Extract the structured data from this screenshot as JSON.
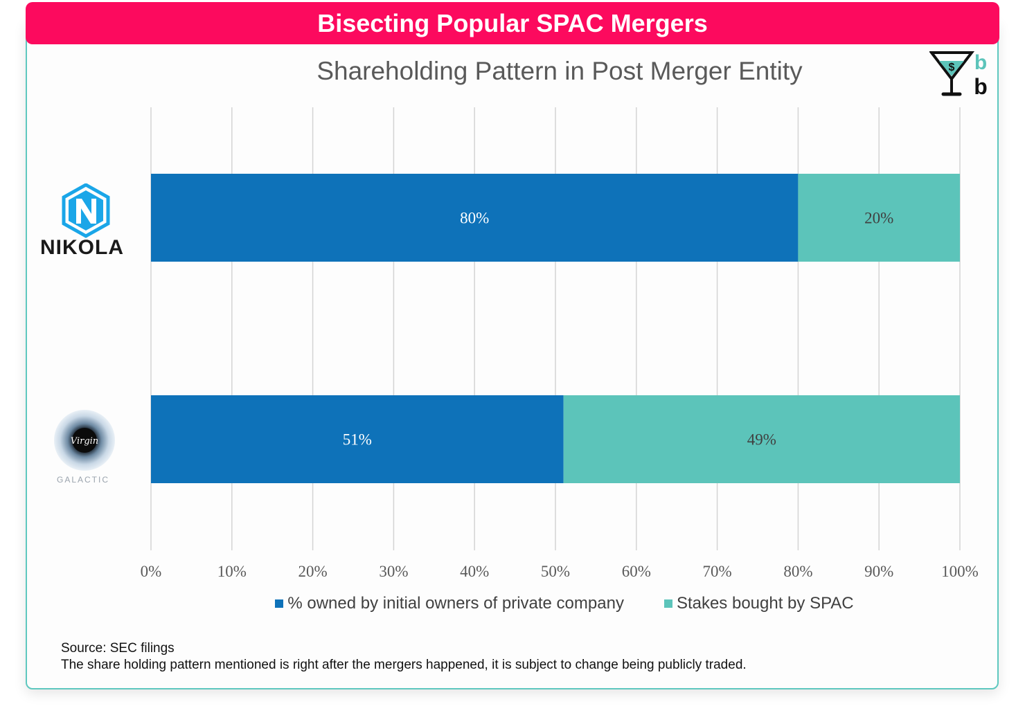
{
  "header": {
    "banner_title": "Bisecting Popular SPAC Mergers"
  },
  "logos": {
    "brand": {
      "icon": "martini-glass-dollar-icon",
      "letters": [
        "b",
        "b"
      ]
    },
    "categories": [
      {
        "name": "NIKOLA",
        "icon": "nikola-hexagon-logo"
      },
      {
        "name": "Virgin Galactic",
        "icon": "virgin-galactic-eye-logo",
        "inner_text": "Virgin",
        "sub_text": "GALACTIC"
      }
    ]
  },
  "chart_data": {
    "type": "bar",
    "orientation": "horizontal",
    "stacked": true,
    "title": "Shareholding Pattern in Post Merger Entity",
    "categories": [
      "NIKOLA",
      "Virgin Galactic"
    ],
    "series": [
      {
        "name": "% owned by initial owners of private company",
        "color": "#0e72b9",
        "values": [
          80,
          51
        ],
        "labels": [
          "80%",
          "51%"
        ]
      },
      {
        "name": "Stakes bought by SPAC",
        "color": "#5cc4ba",
        "values": [
          20,
          49
        ],
        "labels": [
          "20%",
          "49%"
        ]
      }
    ],
    "xlim": [
      0,
      100
    ],
    "xticks": [
      "0%",
      "10%",
      "20%",
      "30%",
      "40%",
      "50%",
      "60%",
      "70%",
      "80%",
      "90%",
      "100%"
    ],
    "grid": true,
    "legend": "bottom"
  },
  "footer": {
    "source": "Source: SEC filings",
    "note": "The share holding pattern mentioned is right after the mergers happened, it is subject to change being publicly traded."
  }
}
